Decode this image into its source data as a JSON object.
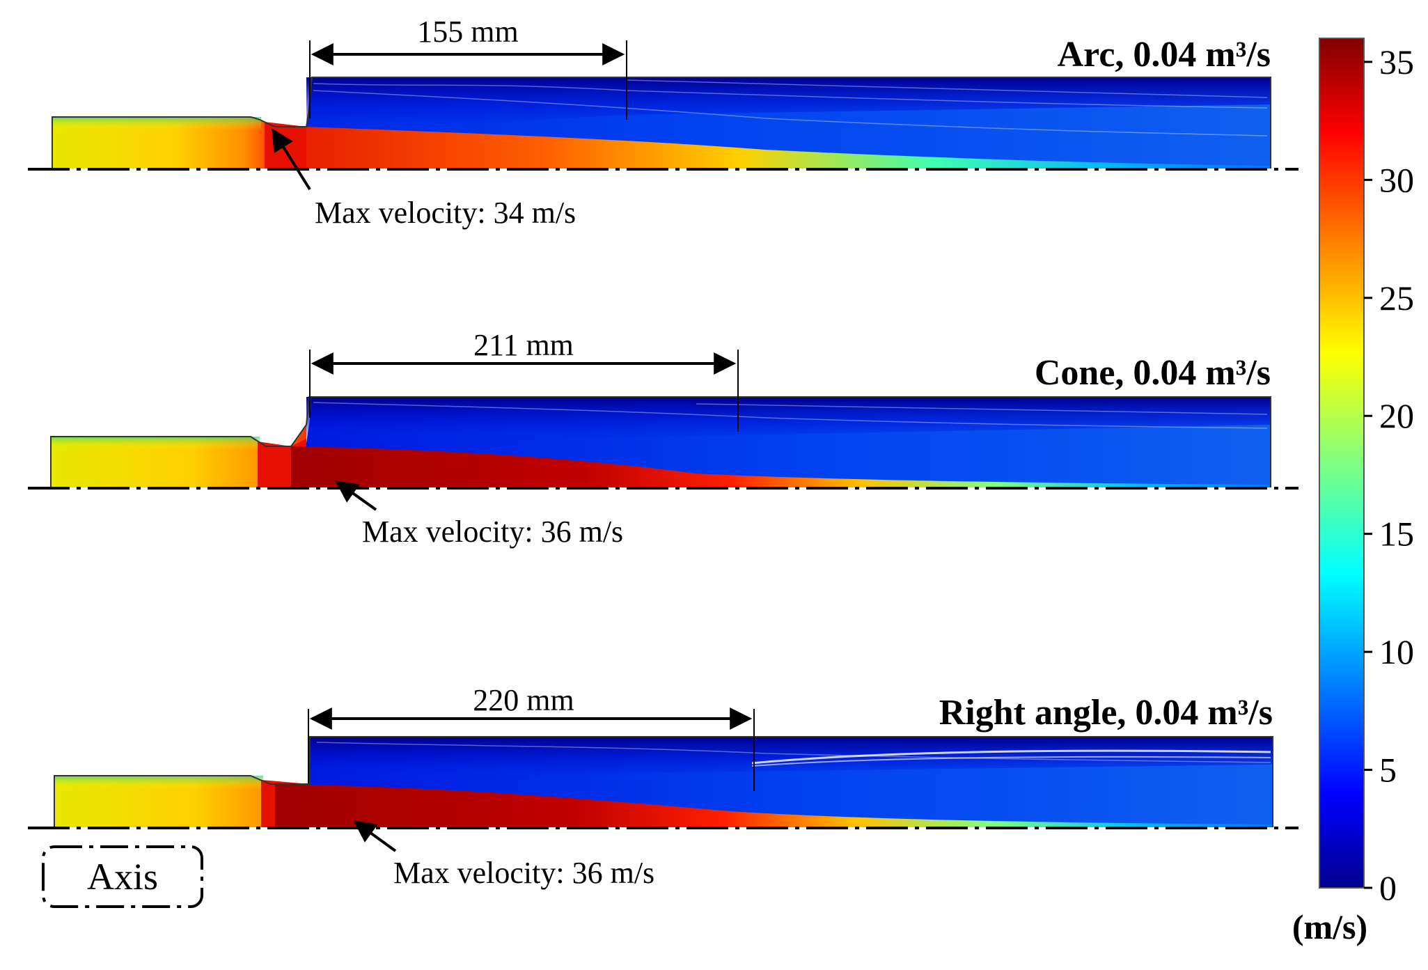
{
  "panels": [
    {
      "title": "Arc, 0.04 m³/s",
      "dimension_label": "155 mm",
      "max_velocity_label": "Max velocity: 34 m/s"
    },
    {
      "title": "Cone, 0.04 m³/s",
      "dimension_label": "211 mm",
      "max_velocity_label": "Max velocity: 36 m/s"
    },
    {
      "title": "Right angle, 0.04 m³/s",
      "dimension_label": "220 mm",
      "max_velocity_label": "Max velocity: 36 m/s"
    }
  ],
  "colorbar": {
    "min": 0,
    "max": 36,
    "ticks": [
      "0",
      "5",
      "10",
      "15",
      "20",
      "25",
      "30",
      "35"
    ],
    "tick_values": [
      0,
      5,
      10,
      15,
      20,
      25,
      30,
      35
    ],
    "unit": "(m/s)",
    "colors": [
      "#00008f",
      "#0000ff",
      "#0080ff",
      "#00ffff",
      "#80ff80",
      "#ffff00",
      "#ff8000",
      "#ff0000",
      "#800000"
    ]
  },
  "legend": {
    "axis_label": "Axis"
  }
}
